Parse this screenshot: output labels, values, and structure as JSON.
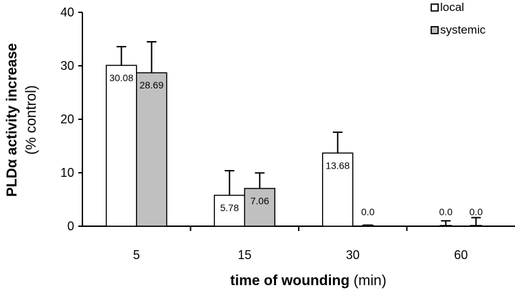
{
  "chart_data": {
    "type": "bar",
    "categories": [
      "5",
      "15",
      "30",
      "60"
    ],
    "series": [
      {
        "name": "local",
        "values": [
          30.08,
          5.78,
          13.68,
          0.0
        ],
        "errors": [
          3.5,
          4.6,
          3.9,
          1.0
        ],
        "labels": [
          "30.08",
          "5.78",
          "13.68",
          "0.0"
        ],
        "color": "#ffffff"
      },
      {
        "name": "systemic",
        "values": [
          28.69,
          7.06,
          0.0,
          0.0
        ],
        "errors": [
          5.8,
          2.9,
          0.2,
          1.6
        ],
        "labels": [
          "28.69",
          "7.06",
          "0.0",
          "0.0"
        ],
        "color": "#c0c0c0"
      }
    ],
    "ylim": [
      0,
      40
    ],
    "yticks": [
      "0",
      "10",
      "20",
      "30",
      "40"
    ],
    "ylabel": {
      "bold": "PLDα activity increase",
      "normal": "(% control)"
    },
    "xlabel": {
      "bold": "time of wounding",
      "normal": " (min)"
    },
    "legend_position": "top-right",
    "grid": false
  }
}
